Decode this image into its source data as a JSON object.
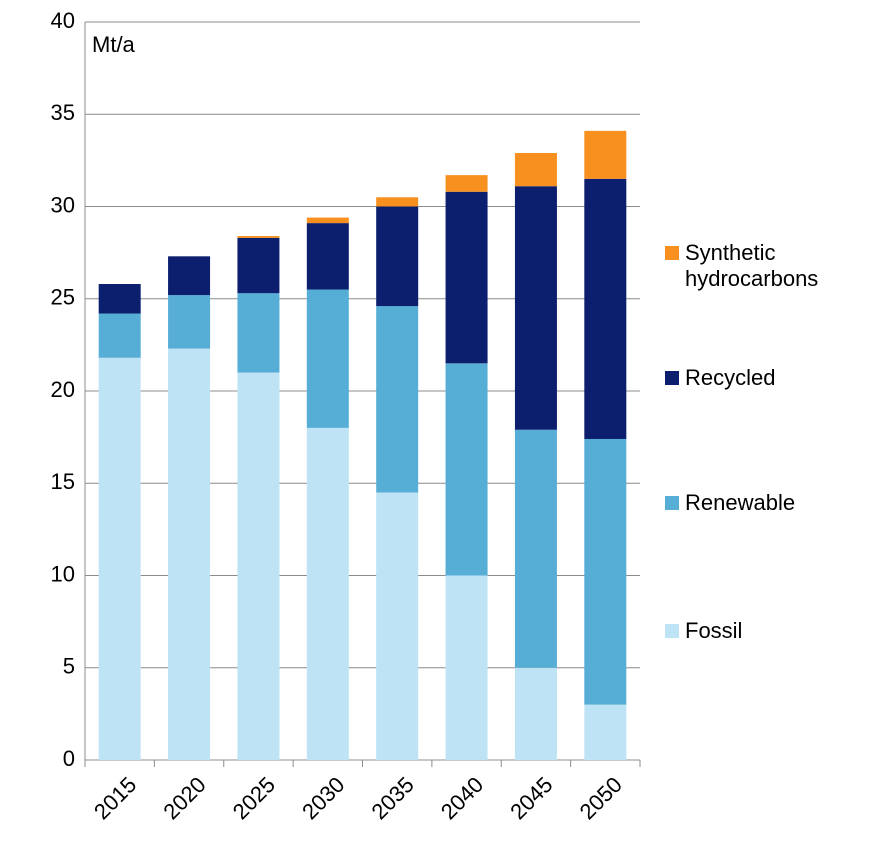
{
  "chart_data": {
    "type": "stacked_bar",
    "y_label": "Mt/a",
    "categories": [
      "2015",
      "2020",
      "2025",
      "2030",
      "2035",
      "2040",
      "2045",
      "2050"
    ],
    "series": [
      {
        "name": "Fossil",
        "color": "#bde3f5",
        "values": [
          21.8,
          22.3,
          21.0,
          18.0,
          14.5,
          10.0,
          5.0,
          3.0
        ]
      },
      {
        "name": "Renewable",
        "color": "#56aed6",
        "values": [
          2.4,
          2.9,
          4.3,
          7.5,
          10.1,
          11.5,
          12.9,
          14.4
        ]
      },
      {
        "name": "Recycled",
        "color": "#0b1f6e",
        "values": [
          1.6,
          2.1,
          3.0,
          3.6,
          5.4,
          9.3,
          13.2,
          14.1
        ]
      },
      {
        "name": "Synthetic hydrocarbons",
        "color": "#f7901e",
        "values": [
          0,
          0,
          0.1,
          0.3,
          0.5,
          0.9,
          1.8,
          2.6
        ]
      }
    ],
    "ylim": [
      0,
      40
    ],
    "yticks": [
      0,
      5,
      10,
      15,
      20,
      25,
      30,
      35,
      40
    ],
    "grid": true,
    "legend": "right"
  }
}
